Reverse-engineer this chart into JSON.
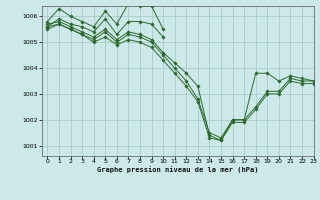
{
  "title": "Graphe pression niveau de la mer (hPa)",
  "background_color": "#cce8e8",
  "grid_color": "#aacccc",
  "line_color": "#2d6a2d",
  "marker_color": "#2d6a2d",
  "ylim": [
    1000.6,
    1006.4
  ],
  "xlim": [
    -0.5,
    23
  ],
  "yticks": [
    1001,
    1002,
    1003,
    1004,
    1005,
    1006
  ],
  "xticks": [
    0,
    1,
    2,
    3,
    4,
    5,
    6,
    7,
    8,
    9,
    10,
    11,
    12,
    13,
    14,
    15,
    16,
    17,
    18,
    19,
    20,
    21,
    22,
    23
  ],
  "series": [
    [
      1005.8,
      1006.3,
      1006.0,
      1005.8,
      1005.6,
      1006.2,
      1005.7,
      1006.5,
      1006.4,
      1006.4,
      1005.5,
      null,
      null,
      null,
      null,
      null,
      null,
      null,
      null,
      null,
      null,
      null,
      null,
      null
    ],
    [
      1005.6,
      1005.9,
      1005.7,
      1005.6,
      1005.4,
      1005.9,
      1005.3,
      1005.8,
      1005.8,
      1005.7,
      1005.2,
      null,
      null,
      null,
      null,
      null,
      null,
      null,
      null,
      null,
      null,
      null,
      null,
      null
    ],
    [
      1005.7,
      1005.8,
      1005.6,
      1005.4,
      1005.2,
      1005.5,
      1005.1,
      1005.4,
      1005.3,
      1005.1,
      1004.6,
      1004.2,
      1003.8,
      1003.3,
      1001.4,
      1001.2,
      1002.0,
      1002.0,
      1002.5,
      1003.1,
      1003.1,
      1003.6,
      1003.5,
      1003.5
    ],
    [
      1005.5,
      1005.7,
      1005.5,
      1005.3,
      1005.1,
      1005.4,
      1005.0,
      1005.3,
      1005.2,
      1005.0,
      1004.5,
      1004.0,
      1003.5,
      1002.8,
      1001.5,
      1001.3,
      1002.0,
      1002.0,
      1003.8,
      1003.8,
      1003.5,
      1003.7,
      1003.6,
      1003.5
    ],
    [
      1005.6,
      1005.7,
      1005.5,
      1005.3,
      1005.0,
      1005.2,
      1004.9,
      1005.1,
      1005.0,
      1004.8,
      1004.3,
      1003.8,
      1003.3,
      1002.7,
      1001.3,
      1001.2,
      1001.9,
      1001.9,
      1002.4,
      1003.0,
      1003.0,
      1003.5,
      1003.4,
      1003.4
    ]
  ]
}
